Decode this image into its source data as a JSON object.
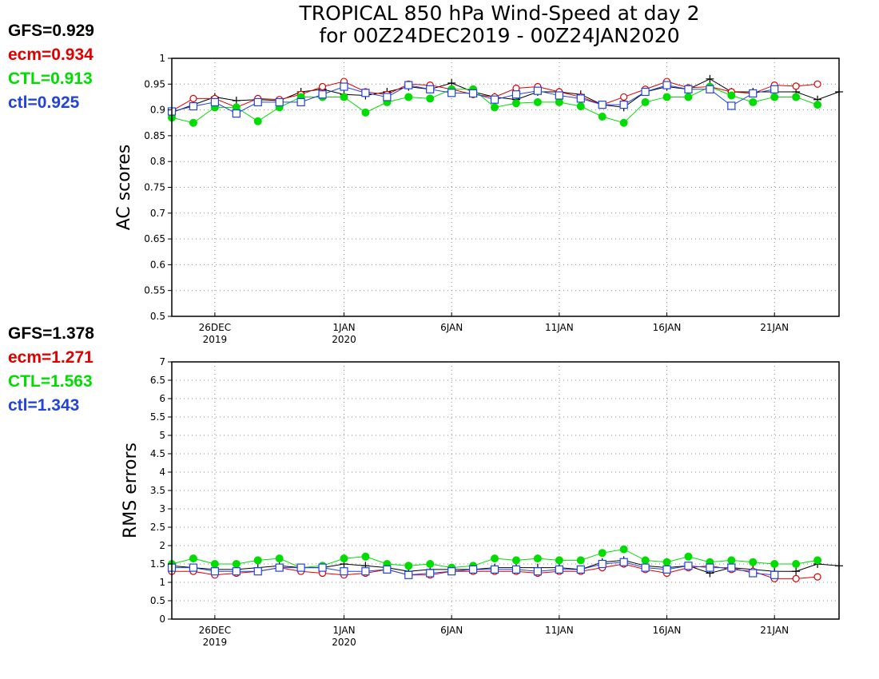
{
  "title_line1": "TROPICAL 850 hPa Wind-Speed at day 2",
  "title_line2": "for 00Z24DEC2019 - 00Z24JAN2020",
  "colors": {
    "GFS": "#000000",
    "ecm": "#e00000",
    "CTL": "#00dd00",
    "ctl": "#2244dd"
  },
  "ac_stats": [
    {
      "label": "GFS=0.929",
      "color": "#000000"
    },
    {
      "label": "ecm=0.934",
      "color": "#e00000"
    },
    {
      "label": "CTL=0.913",
      "color": "#00dd00"
    },
    {
      "label": "ctl=0.925",
      "color": "#2244dd"
    }
  ],
  "rms_stats": [
    {
      "label": "GFS=1.378",
      "color": "#000000"
    },
    {
      "label": "ecm=1.271",
      "color": "#e00000"
    },
    {
      "label": "CTL=1.563",
      "color": "#00dd00"
    },
    {
      "label": "ctl=1.343",
      "color": "#2244dd"
    }
  ],
  "chart_data": [
    {
      "type": "line",
      "ylabel": "AC scores",
      "ylim": [
        0.5,
        1
      ],
      "yticks": [
        "0.5",
        "0.55",
        "0.6",
        "0.65",
        "0.7",
        "0.75",
        "0.8",
        "0.85",
        "0.9",
        "0.95",
        "1"
      ],
      "x_range_days": [
        "24DEC2019",
        "23JAN2020"
      ],
      "xtick_labels": [
        {
          "date": "26DEC2019",
          "line1": "26DEC",
          "line2": "2019"
        },
        {
          "date": "1JAN2020",
          "line1": "1JAN",
          "line2": "2020"
        },
        {
          "date": "6JAN2020",
          "line1": "6JAN",
          "line2": ""
        },
        {
          "date": "11JAN2020",
          "line1": "11JAN",
          "line2": ""
        },
        {
          "date": "16JAN2020",
          "line1": "16JAN",
          "line2": ""
        },
        {
          "date": "21JAN2020",
          "line1": "21JAN",
          "line2": ""
        }
      ],
      "grid": true,
      "x": [
        "24DEC",
        "25DEC",
        "26DEC",
        "27DEC",
        "28DEC",
        "29DEC",
        "30DEC",
        "31DEC",
        "1JAN",
        "2JAN",
        "3JAN",
        "4JAN",
        "5JAN",
        "6JAN",
        "7JAN",
        "8JAN",
        "9JAN",
        "10JAN",
        "11JAN",
        "12JAN",
        "13JAN",
        "14JAN",
        "15JAN",
        "16JAN",
        "17JAN",
        "18JAN",
        "19JAN",
        "20JAN",
        "21JAN",
        "22JAN",
        "23JAN",
        "24JAN"
      ],
      "series": [
        {
          "name": "GFS",
          "marker": "plus",
          "values": [
            0.895,
            0.91,
            0.925,
            0.918,
            0.92,
            0.918,
            0.935,
            0.94,
            0.93,
            0.928,
            0.935,
            0.945,
            0.94,
            0.952,
            0.935,
            0.925,
            0.92,
            0.935,
            0.935,
            0.93,
            0.91,
            0.905,
            0.935,
            0.945,
            0.94,
            0.96,
            0.935,
            0.935,
            0.935,
            0.935,
            0.92,
            0.935
          ]
        },
        {
          "name": "ecm",
          "marker": "circle",
          "values": [
            0.898,
            0.922,
            0.922,
            0.905,
            0.922,
            0.92,
            0.93,
            0.945,
            0.955,
            0.935,
            0.93,
            0.95,
            0.948,
            0.94,
            0.93,
            0.925,
            0.942,
            0.945,
            0.935,
            0.925,
            0.91,
            0.925,
            0.94,
            0.955,
            0.943,
            0.945,
            0.935,
            0.932,
            0.948,
            0.946,
            0.95,
            null
          ]
        },
        {
          "name": "CTL",
          "marker": "dot",
          "values": [
            0.885,
            0.875,
            0.905,
            0.905,
            0.878,
            0.905,
            0.925,
            0.925,
            0.925,
            0.895,
            0.915,
            0.925,
            0.922,
            0.94,
            0.94,
            0.905,
            0.913,
            0.915,
            0.915,
            0.907,
            0.887,
            0.875,
            0.915,
            0.925,
            0.925,
            0.945,
            0.928,
            0.915,
            0.925,
            0.925,
            0.91,
            null
          ]
        },
        {
          "name": "ctl",
          "marker": "square",
          "values": [
            0.897,
            0.907,
            0.915,
            0.893,
            0.915,
            0.915,
            0.915,
            0.93,
            0.945,
            0.933,
            0.925,
            0.948,
            0.94,
            0.933,
            0.932,
            0.92,
            0.93,
            0.937,
            0.928,
            0.922,
            0.91,
            0.91,
            0.935,
            0.948,
            0.94,
            0.94,
            0.908,
            0.932,
            0.94,
            null,
            null,
            null
          ]
        }
      ]
    },
    {
      "type": "line",
      "ylabel": "RMS errors",
      "ylim": [
        0,
        7
      ],
      "yticks": [
        "0",
        "0.5",
        "1",
        "1.5",
        "2",
        "2.5",
        "3",
        "3.5",
        "4",
        "4.5",
        "5",
        "5.5",
        "6",
        "6.5",
        "7"
      ],
      "x_range_days": [
        "24DEC2019",
        "23JAN2020"
      ],
      "xtick_labels": [
        {
          "date": "26DEC2019",
          "line1": "26DEC",
          "line2": "2019"
        },
        {
          "date": "1JAN2020",
          "line1": "1JAN",
          "line2": "2020"
        },
        {
          "date": "6JAN2020",
          "line1": "6JAN",
          "line2": ""
        },
        {
          "date": "11JAN2020",
          "line1": "11JAN",
          "line2": ""
        },
        {
          "date": "16JAN2020",
          "line1": "16JAN",
          "line2": ""
        },
        {
          "date": "21JAN2020",
          "line1": "21JAN",
          "line2": ""
        }
      ],
      "grid": true,
      "x": [
        "24DEC",
        "25DEC",
        "26DEC",
        "27DEC",
        "28DEC",
        "29DEC",
        "30DEC",
        "31DEC",
        "1JAN",
        "2JAN",
        "3JAN",
        "4JAN",
        "5JAN",
        "6JAN",
        "7JAN",
        "8JAN",
        "9JAN",
        "10JAN",
        "11JAN",
        "12JAN",
        "13JAN",
        "14JAN",
        "15JAN",
        "16JAN",
        "17JAN",
        "18JAN",
        "19JAN",
        "20JAN",
        "21JAN",
        "22JAN",
        "23JAN",
        "24JAN"
      ],
      "series": [
        {
          "name": "GFS",
          "marker": "plus",
          "values": [
            1.45,
            1.4,
            1.35,
            1.35,
            1.4,
            1.45,
            1.4,
            1.4,
            1.5,
            1.45,
            1.4,
            1.3,
            1.35,
            1.35,
            1.35,
            1.4,
            1.4,
            1.4,
            1.4,
            1.35,
            1.55,
            1.6,
            1.45,
            1.4,
            1.45,
            1.25,
            1.4,
            1.35,
            1.3,
            1.3,
            1.5,
            1.45
          ]
        },
        {
          "name": "ecm",
          "marker": "circle",
          "values": [
            1.3,
            1.3,
            1.2,
            1.25,
            1.3,
            1.4,
            1.3,
            1.25,
            1.2,
            1.25,
            1.35,
            1.2,
            1.2,
            1.3,
            1.3,
            1.3,
            1.3,
            1.25,
            1.3,
            1.3,
            1.4,
            1.5,
            1.35,
            1.25,
            1.4,
            1.45,
            1.35,
            1.3,
            1.1,
            1.1,
            1.15,
            null
          ]
        },
        {
          "name": "CTL",
          "marker": "dot",
          "values": [
            1.5,
            1.65,
            1.5,
            1.5,
            1.6,
            1.65,
            1.4,
            1.45,
            1.65,
            1.7,
            1.5,
            1.45,
            1.5,
            1.4,
            1.45,
            1.65,
            1.6,
            1.65,
            1.6,
            1.6,
            1.8,
            1.9,
            1.6,
            1.55,
            1.7,
            1.55,
            1.6,
            1.55,
            1.5,
            1.5,
            1.6,
            null
          ]
        },
        {
          "name": "ctl",
          "marker": "square",
          "values": [
            1.4,
            1.4,
            1.3,
            1.3,
            1.3,
            1.4,
            1.4,
            1.4,
            1.3,
            1.3,
            1.35,
            1.2,
            1.25,
            1.3,
            1.35,
            1.35,
            1.35,
            1.3,
            1.35,
            1.35,
            1.5,
            1.55,
            1.4,
            1.35,
            1.45,
            1.4,
            1.4,
            1.25,
            1.2,
            null,
            null,
            null
          ]
        }
      ]
    }
  ]
}
